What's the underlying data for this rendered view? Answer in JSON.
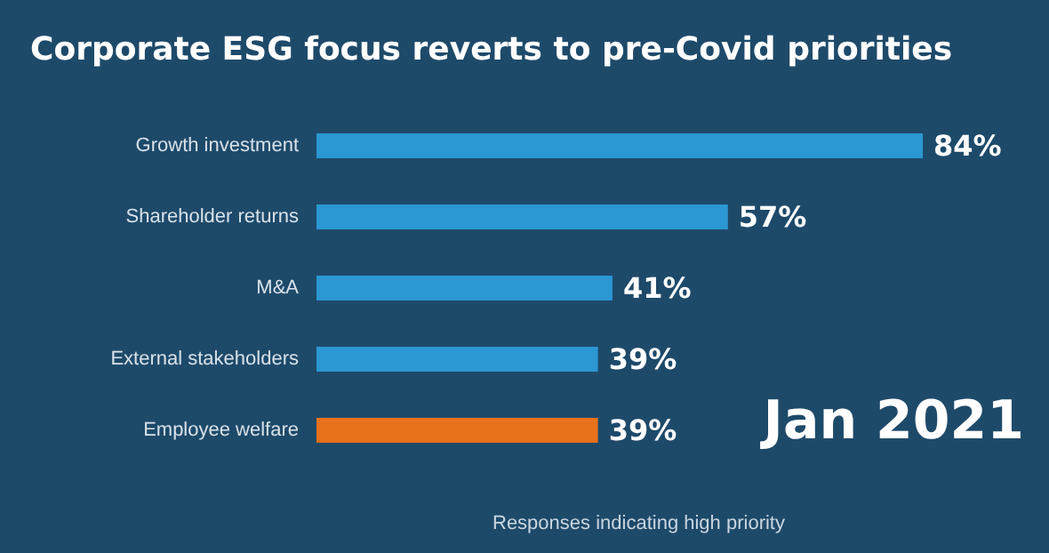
{
  "chart_data": {
    "type": "bar",
    "orientation": "horizontal",
    "title": "Corporate ESG focus reverts to pre-Covid priorities",
    "categories": [
      "Growth investment",
      "Shareholder returns",
      "M&A",
      "External stakeholders",
      "Employee welfare"
    ],
    "values": [
      84,
      57,
      41,
      39,
      39
    ],
    "colors": [
      "#2b97d3",
      "#2b97d3",
      "#2b97d3",
      "#2b97d3",
      "#e8711c"
    ],
    "value_labels": [
      "84%",
      "57%",
      "41%",
      "39%",
      "39%"
    ],
    "xlabel": "Responses indicating high priority",
    "annotations": [
      "Jan 2021"
    ]
  }
}
